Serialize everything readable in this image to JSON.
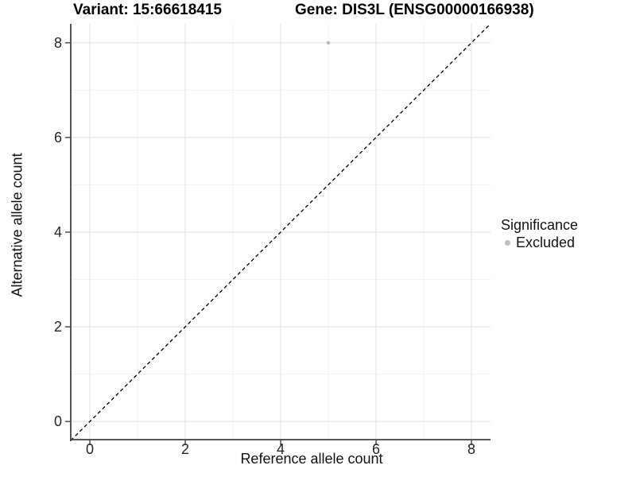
{
  "titles": {
    "variant": "Variant: 15:66618415",
    "gene": "Gene: DIS3L (ENSG00000166938)"
  },
  "axes": {
    "x_label": "Reference allele count",
    "y_label": "Alternative allele count"
  },
  "legend": {
    "title": "Significance",
    "entries": [
      {
        "label": "Excluded",
        "color": "#bdbdbd",
        "marker": "circle-icon"
      }
    ]
  },
  "chart_data": {
    "type": "scatter",
    "title": "Variant: 15:66618415   Gene: DIS3L (ENSG00000166938)",
    "xlabel": "Reference allele count",
    "ylabel": "Alternative allele count",
    "xlim": [
      -0.4,
      8.4
    ],
    "ylim": [
      -0.4,
      8.4
    ],
    "x_ticks": [
      0,
      2,
      4,
      6,
      8
    ],
    "y_ticks": [
      0,
      2,
      4,
      6,
      8
    ],
    "x_minor_ticks": [
      1,
      3,
      5,
      7
    ],
    "y_minor_ticks": [
      1,
      3,
      5,
      7
    ],
    "grid": true,
    "legend_position": "right",
    "series": [
      {
        "name": "Excluded",
        "color": "#bdbdbd",
        "points": [
          {
            "x": 5,
            "y": 8
          }
        ]
      }
    ],
    "reference_line": {
      "style": "dashed",
      "slope": 1,
      "intercept": 0,
      "color": "#000000"
    },
    "colors": {
      "background": "#ffffff",
      "grid_major": "#e4e4e4",
      "grid_minor": "#f0f0f0",
      "axis_line": "#404040",
      "tick_mark": "#333333",
      "point": "#bdbdbd"
    }
  }
}
